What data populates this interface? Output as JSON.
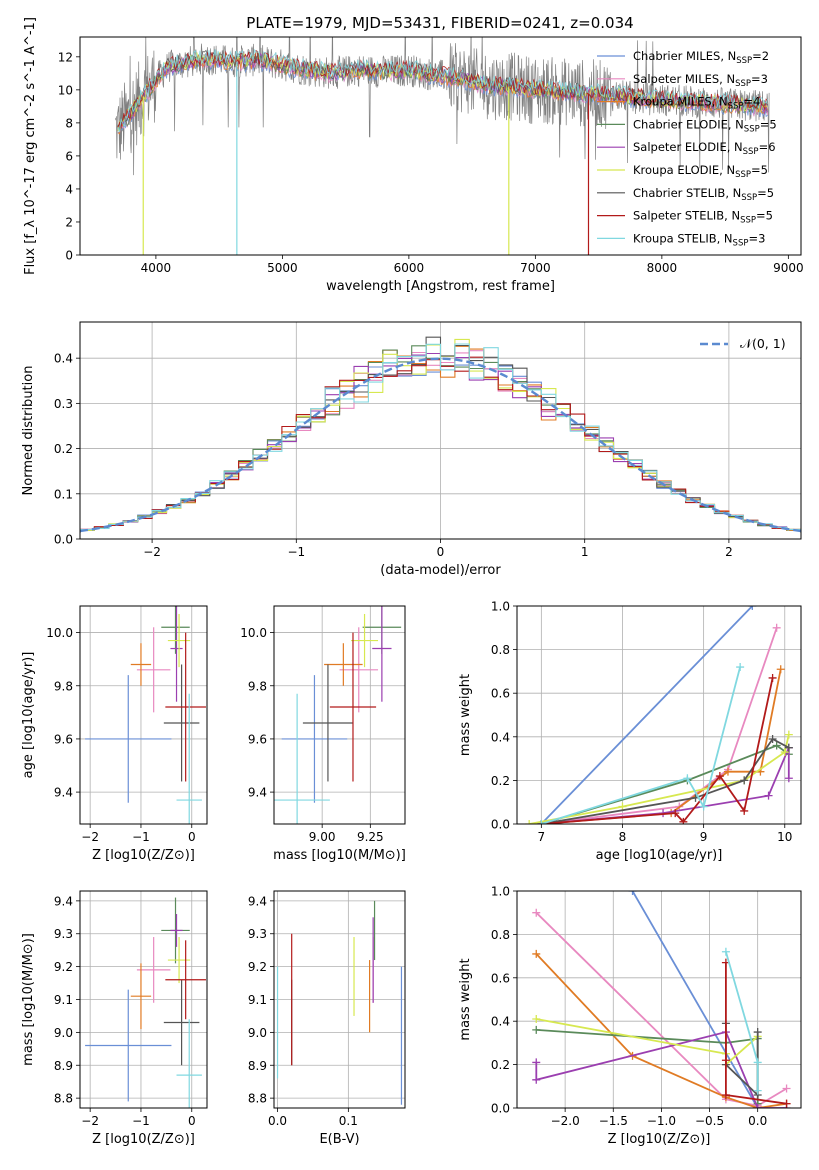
{
  "figure": {
    "title": "PLATE=1979, MJD=53431, FIBERID=0241, z=0.034"
  },
  "colors": {
    "chabrier_miles": "#6a8fd6",
    "salpeter_miles": "#e889c0",
    "kroupa_miles": "#e07b24",
    "chabrier_elodie": "#5a8a5a",
    "salpeter_elodie": "#9b3fb0",
    "kroupa_elodie": "#d7e850",
    "chabrier_stelib": "#555555",
    "salpeter_stelib": "#b21a1a",
    "kroupa_stelib": "#80d8e0",
    "data": "#808080"
  },
  "chart_data": [
    {
      "id": "spectrum",
      "type": "line",
      "xlabel": "wavelength [Angstrom, rest frame]",
      "ylabel": "Flux [f_λ 10^-17 erg cm^-2 s^-1 A^-1]",
      "xlim": [
        3400,
        9100
      ],
      "ylim": [
        0,
        13.2
      ],
      "xticks": [
        4000,
        5000,
        6000,
        7000,
        8000,
        9000
      ],
      "yticks": [
        0,
        2,
        4,
        6,
        8,
        10,
        12
      ],
      "grid": false,
      "legend": "top-right",
      "series": [
        {
          "name": "Chabrier MILES, N",
          "sub": "SSP",
          "eq": "=2",
          "key": "chabrier_miles"
        },
        {
          "name": "Salpeter MILES, N",
          "sub": "SSP",
          "eq": "=3",
          "key": "salpeter_miles"
        },
        {
          "name": "Kroupa MILES, N",
          "sub": "SSP",
          "eq": "=4",
          "key": "kroupa_miles"
        },
        {
          "name": "Chabrier ELODIE, N",
          "sub": "SSP",
          "eq": "=5",
          "key": "chabrier_elodie"
        },
        {
          "name": "Salpeter ELODIE, N",
          "sub": "SSP",
          "eq": "=6",
          "key": "salpeter_elodie"
        },
        {
          "name": "Kroupa ELODIE, N",
          "sub": "SSP",
          "eq": "=5",
          "key": "kroupa_elodie"
        },
        {
          "name": "Chabrier STELIB, N",
          "sub": "SSP",
          "eq": "=5",
          "key": "chabrier_stelib"
        },
        {
          "name": "Salpeter STELIB, N",
          "sub": "SSP",
          "eq": "=5",
          "key": "salpeter_stelib"
        },
        {
          "name": "Kroupa STELIB, N",
          "sub": "SSP",
          "eq": "=3",
          "key": "kroupa_stelib"
        }
      ],
      "continuum": {
        "wavelength": [
          3700,
          3800,
          3900,
          4000,
          4100,
          4200,
          4400,
          4600,
          4800,
          5000,
          5200,
          5400,
          5600,
          5800,
          6000,
          6200,
          6400,
          6600,
          6800,
          7000,
          7200,
          7400,
          7600,
          7800,
          8000,
          8200,
          8400,
          8600,
          8800
        ],
        "flux": [
          7.5,
          8.6,
          9.6,
          10.6,
          11.4,
          11.6,
          11.9,
          11.7,
          11.8,
          11.5,
          11.2,
          11.0,
          11.2,
          11.1,
          11.2,
          10.9,
          10.7,
          10.3,
          10.2,
          10.0,
          9.9,
          9.8,
          9.7,
          9.5,
          9.4,
          9.3,
          9.2,
          9.1,
          9.0
        ]
      },
      "model_dropouts": [
        {
          "key": "kroupa_elodie",
          "wavelength": 3900
        },
        {
          "key": "kroupa_stelib",
          "wavelength": 4640
        },
        {
          "key": "kroupa_elodie",
          "wavelength": 6790
        },
        {
          "key": "salpeter_stelib",
          "wavelength": 7420
        }
      ]
    },
    {
      "id": "residual-histogram",
      "type": "line",
      "xlabel": "(data-model)/error",
      "ylabel": "Normed distribution",
      "xlim": [
        -2.5,
        2.5
      ],
      "ylim": [
        0,
        0.48
      ],
      "xticks": [
        -2,
        -1,
        0,
        1,
        2
      ],
      "xtick_labels": [
        "−2",
        "−1",
        "0",
        "1",
        "2"
      ],
      "yticks": [
        0,
        0.1,
        0.2,
        0.3,
        0.4
      ],
      "ytick_labels": [
        "0.0",
        "0.1",
        "0.2",
        "0.3",
        "0.4"
      ],
      "grid": true,
      "legend": "top-right",
      "legend_label": "𝒩(0, 1)",
      "bin_width": 0.1,
      "gaussian": {
        "mean": 0,
        "sigma": 1,
        "style": "dashed",
        "color": "#5b8ad0"
      }
    },
    {
      "id": "age-vs-metallicity",
      "type": "scatter",
      "xlabel": "Z [log10(Z/Z⊙)]",
      "ylabel": "age [log10(age/yr)]",
      "xlim": [
        -2.2,
        0.3
      ],
      "ylim": [
        9.28,
        10.1
      ],
      "xticks": [
        -2,
        -1,
        0
      ],
      "xtick_labels": [
        "−2",
        "−1",
        "0"
      ],
      "yticks": [
        9.4,
        9.6,
        9.8,
        10.0
      ],
      "ytick_labels": [
        "9.4",
        "9.6",
        "9.8",
        "10.0"
      ],
      "grid": true,
      "points": [
        {
          "key": "chabrier_miles",
          "x": -1.25,
          "xerr": 0.85,
          "y": 9.6,
          "yerr": 0.24
        },
        {
          "key": "salpeter_miles",
          "x": -0.75,
          "xerr": 0.33,
          "y": 9.86,
          "yerr": 0.16
        },
        {
          "key": "kroupa_miles",
          "x": -1.0,
          "xerr": 0.2,
          "y": 9.88,
          "yerr": 0.08
        },
        {
          "key": "chabrier_elodie",
          "x": -0.32,
          "xerr": 0.28,
          "y": 10.02,
          "yerr": 0.1
        },
        {
          "key": "salpeter_elodie",
          "x": -0.3,
          "xerr": 0.12,
          "y": 9.94,
          "yerr": 0.2
        },
        {
          "key": "kroupa_elodie",
          "x": -0.25,
          "xerr": 0.22,
          "y": 9.97,
          "yerr": 0.1
        },
        {
          "key": "chabrier_stelib",
          "x": -0.2,
          "xerr": 0.35,
          "y": 9.66,
          "yerr": 0.22
        },
        {
          "key": "salpeter_stelib",
          "x": -0.12,
          "xerr": 0.4,
          "y": 9.72,
          "yerr": 0.28
        },
        {
          "key": "kroupa_stelib",
          "x": -0.05,
          "xerr": 0.25,
          "y": 9.37,
          "yerr": 0.4
        }
      ]
    },
    {
      "id": "age-vs-mass",
      "type": "scatter",
      "xlabel": "mass [log10(M/M⊙)]",
      "ylabel": "",
      "xlim": [
        8.75,
        9.43
      ],
      "ylim": [
        9.28,
        10.1
      ],
      "xticks": [
        9.0,
        9.25
      ],
      "xtick_labels": [
        "9.00",
        "9.25"
      ],
      "yticks": [
        9.4,
        9.6,
        9.8,
        10.0
      ],
      "ytick_labels": [
        "9.4",
        "9.6",
        "9.8",
        "10.0"
      ],
      "grid": true,
      "points": [
        {
          "key": "chabrier_miles",
          "x": 8.96,
          "xerr": 0.17,
          "y": 9.6,
          "yerr": 0.24
        },
        {
          "key": "salpeter_miles",
          "x": 9.19,
          "xerr": 0.1,
          "y": 9.86,
          "yerr": 0.16
        },
        {
          "key": "kroupa_miles",
          "x": 9.11,
          "xerr": 0.1,
          "y": 9.88,
          "yerr": 0.08
        },
        {
          "key": "chabrier_elodie",
          "x": 9.31,
          "xerr": 0.1,
          "y": 10.02,
          "yerr": 0.1
        },
        {
          "key": "salpeter_elodie",
          "x": 9.31,
          "xerr": 0.05,
          "y": 9.94,
          "yerr": 0.2
        },
        {
          "key": "kroupa_elodie",
          "x": 9.22,
          "xerr": 0.07,
          "y": 9.97,
          "yerr": 0.1
        },
        {
          "key": "chabrier_stelib",
          "x": 9.03,
          "xerr": 0.13,
          "y": 9.66,
          "yerr": 0.22
        },
        {
          "key": "salpeter_stelib",
          "x": 9.16,
          "xerr": 0.12,
          "y": 9.72,
          "yerr": 0.28
        },
        {
          "key": "kroupa_stelib",
          "x": 8.87,
          "xerr": 0.17,
          "y": 9.37,
          "yerr": 0.4
        }
      ]
    },
    {
      "id": "mass-weight-vs-age",
      "type": "line",
      "xlabel": "age [log10(age/yr)]",
      "ylabel": "mass weight",
      "xlim": [
        6.7,
        10.2
      ],
      "ylim": [
        0,
        1
      ],
      "xticks": [
        7,
        8,
        9,
        10
      ],
      "yticks": [
        0,
        0.2,
        0.4,
        0.6,
        0.8,
        1.0
      ],
      "ytick_labels": [
        "0.0",
        "0.2",
        "0.4",
        "0.6",
        "0.8",
        "1.0"
      ],
      "grid": true,
      "series": [
        {
          "key": "chabrier_miles",
          "x": [
            7.0,
            9.6
          ],
          "y": [
            0.0,
            1.0
          ]
        },
        {
          "key": "salpeter_miles",
          "x": [
            7.0,
            8.7,
            9.3,
            9.9
          ],
          "y": [
            0.0,
            0.08,
            0.25,
            0.9
          ]
        },
        {
          "key": "kroupa_miles",
          "x": [
            7.0,
            8.6,
            9.3,
            9.7,
            9.95
          ],
          "y": [
            0.0,
            0.05,
            0.24,
            0.24,
            0.71
          ]
        },
        {
          "key": "chabrier_elodie",
          "x": [
            7.0,
            8.8,
            9.9,
            10.05
          ],
          "y": [
            0.0,
            0.2,
            0.36,
            0.32
          ]
        },
        {
          "key": "salpeter_elodie",
          "x": [
            7.0,
            8.5,
            9.8,
            10.05,
            10.05
          ],
          "y": [
            0.0,
            0.05,
            0.13,
            0.35,
            0.21
          ]
        },
        {
          "key": "kroupa_elodie",
          "x": [
            6.85,
            8.0,
            9.5,
            10.0,
            10.05
          ],
          "y": [
            0.0,
            0.08,
            0.2,
            0.33,
            0.41
          ]
        },
        {
          "key": "chabrier_stelib",
          "x": [
            7.0,
            8.9,
            9.5,
            9.85,
            10.05
          ],
          "y": [
            0.0,
            0.12,
            0.2,
            0.39,
            0.35
          ]
        },
        {
          "key": "salpeter_stelib",
          "x": [
            7.0,
            8.65,
            8.75,
            9.2,
            9.5,
            9.85
          ],
          "y": [
            0.0,
            0.05,
            0.01,
            0.22,
            0.06,
            0.67
          ]
        },
        {
          "key": "kroupa_stelib",
          "x": [
            7.0,
            8.8,
            9.0,
            9.45
          ],
          "y": [
            0.0,
            0.21,
            0.08,
            0.72
          ]
        }
      ]
    },
    {
      "id": "mass-vs-metallicity",
      "type": "scatter",
      "xlabel": "Z [log10(Z/Z⊙)]",
      "ylabel": "mass [log10(M/M⊙)]",
      "xlim": [
        -2.2,
        0.3
      ],
      "ylim": [
        8.77,
        9.43
      ],
      "xticks": [
        -2,
        -1,
        0
      ],
      "xtick_labels": [
        "−2",
        "−1",
        "0"
      ],
      "yticks": [
        8.8,
        8.9,
        9.0,
        9.1,
        9.2,
        9.3,
        9.4
      ],
      "ytick_labels": [
        "8.8",
        "8.9",
        "9.0",
        "9.1",
        "9.2",
        "9.3",
        "9.4"
      ],
      "grid": true,
      "points": [
        {
          "key": "chabrier_miles",
          "x": -1.25,
          "xerr": 0.85,
          "y": 8.96,
          "yerr": 0.17
        },
        {
          "key": "salpeter_miles",
          "x": -0.75,
          "xerr": 0.33,
          "y": 9.19,
          "yerr": 0.1
        },
        {
          "key": "kroupa_miles",
          "x": -1.0,
          "xerr": 0.2,
          "y": 9.11,
          "yerr": 0.1
        },
        {
          "key": "chabrier_elodie",
          "x": -0.32,
          "xerr": 0.28,
          "y": 9.31,
          "yerr": 0.1
        },
        {
          "key": "salpeter_elodie",
          "x": -0.3,
          "xerr": 0.12,
          "y": 9.31,
          "yerr": 0.05
        },
        {
          "key": "kroupa_elodie",
          "x": -0.25,
          "xerr": 0.22,
          "y": 9.22,
          "yerr": 0.07
        },
        {
          "key": "chabrier_stelib",
          "x": -0.2,
          "xerr": 0.35,
          "y": 9.03,
          "yerr": 0.13
        },
        {
          "key": "salpeter_stelib",
          "x": -0.12,
          "xerr": 0.4,
          "y": 9.16,
          "yerr": 0.12
        },
        {
          "key": "kroupa_stelib",
          "x": -0.05,
          "xerr": 0.25,
          "y": 8.87,
          "yerr": 0.17
        }
      ]
    },
    {
      "id": "mass-vs-extinction",
      "type": "scatter",
      "xlabel": "E(B-V)",
      "ylabel": "",
      "xlim": [
        -0.005,
        0.18
      ],
      "ylim": [
        8.77,
        9.43
      ],
      "xticks": [
        0.0,
        0.1
      ],
      "xtick_labels": [
        "0.0",
        "0.1"
      ],
      "yticks": [
        8.8,
        8.9,
        9.0,
        9.1,
        9.2,
        9.3,
        9.4
      ],
      "ytick_labels": [
        "8.8",
        "8.9",
        "9.0",
        "9.1",
        "9.2",
        "9.3",
        "9.4"
      ],
      "grid": true,
      "points": [
        {
          "key": "chabrier_miles",
          "x": 0.175,
          "xerr": 0,
          "y": 8.99,
          "yerr": 0.21
        },
        {
          "key": "salpeter_miles",
          "x": 0.135,
          "xerr": 0,
          "y": 9.19,
          "yerr": 0.1
        },
        {
          "key": "kroupa_miles",
          "x": 0.13,
          "xerr": 0,
          "y": 9.11,
          "yerr": 0.11
        },
        {
          "key": "chabrier_elodie",
          "x": 0.137,
          "xerr": 0,
          "y": 9.31,
          "yerr": 0.09
        },
        {
          "key": "salpeter_elodie",
          "x": 0.135,
          "xerr": 0,
          "y": 9.22,
          "yerr": 0.13
        },
        {
          "key": "kroupa_elodie",
          "x": 0.108,
          "xerr": 0,
          "y": 9.17,
          "yerr": 0.12
        },
        {
          "key": "chabrier_stelib",
          "x": 0.02,
          "xerr": 0,
          "y": 9.03,
          "yerr": 0.13
        },
        {
          "key": "salpeter_stelib",
          "x": 0.02,
          "xerr": 0,
          "y": 9.1,
          "yerr": 0.2
        },
        {
          "key": "kroupa_stelib",
          "x": 0.0,
          "xerr": 0,
          "y": 9.03,
          "yerr": 0.17
        }
      ]
    },
    {
      "id": "mass-weight-vs-metallicity",
      "type": "line",
      "xlabel": "Z [log10(Z/Z⊙)]",
      "ylabel": "mass weight",
      "xlim": [
        -2.5,
        0.45
      ],
      "ylim": [
        0,
        1
      ],
      "xticks": [
        -2.0,
        -1.5,
        -1.0,
        -0.5,
        0.0
      ],
      "xtick_labels": [
        "−2.0",
        "−1.5",
        "−1.0",
        "−0.5",
        "0.0"
      ],
      "yticks": [
        0,
        0.2,
        0.4,
        0.6,
        0.8,
        1.0
      ],
      "ytick_labels": [
        "0.0",
        "0.2",
        "0.4",
        "0.6",
        "0.8",
        "1.0"
      ],
      "grid": true,
      "series": [
        {
          "key": "chabrier_miles",
          "x": [
            -1.3,
            0.0
          ],
          "y": [
            1.0,
            0.0
          ]
        },
        {
          "key": "salpeter_miles",
          "x": [
            -2.3,
            -0.33,
            0.0,
            0.3
          ],
          "y": [
            0.9,
            0.04,
            0.01,
            0.09
          ]
        },
        {
          "key": "kroupa_miles",
          "x": [
            -2.3,
            -1.3,
            -0.33,
            0.0,
            0.3
          ],
          "y": [
            0.71,
            0.24,
            0.05,
            0.0,
            0.02
          ]
        },
        {
          "key": "chabrier_elodie",
          "x": [
            -2.3,
            -0.33,
            0.0,
            0.0
          ],
          "y": [
            0.36,
            0.3,
            0.32,
            0.02
          ]
        },
        {
          "key": "salpeter_elodie",
          "x": [
            -2.3,
            -2.3,
            -0.33,
            0.0,
            0.3
          ],
          "y": [
            0.21,
            0.13,
            0.35,
            0.0,
            0.0
          ]
        },
        {
          "key": "kroupa_elodie",
          "x": [
            -2.3,
            -0.33,
            -0.33,
            0.0
          ],
          "y": [
            0.41,
            0.25,
            0.2,
            0.33
          ]
        },
        {
          "key": "chabrier_stelib",
          "x": [
            -0.33,
            -0.33,
            0.0,
            0.0
          ],
          "y": [
            0.39,
            0.2,
            0.06,
            0.35
          ]
        },
        {
          "key": "salpeter_stelib",
          "x": [
            -0.33,
            -0.33,
            -0.33,
            0.3
          ],
          "y": [
            0.67,
            0.22,
            0.06,
            0.02
          ]
        },
        {
          "key": "kroupa_stelib",
          "x": [
            -0.33,
            0.0,
            0.0
          ],
          "y": [
            0.72,
            0.21,
            0.08
          ]
        }
      ]
    }
  ]
}
